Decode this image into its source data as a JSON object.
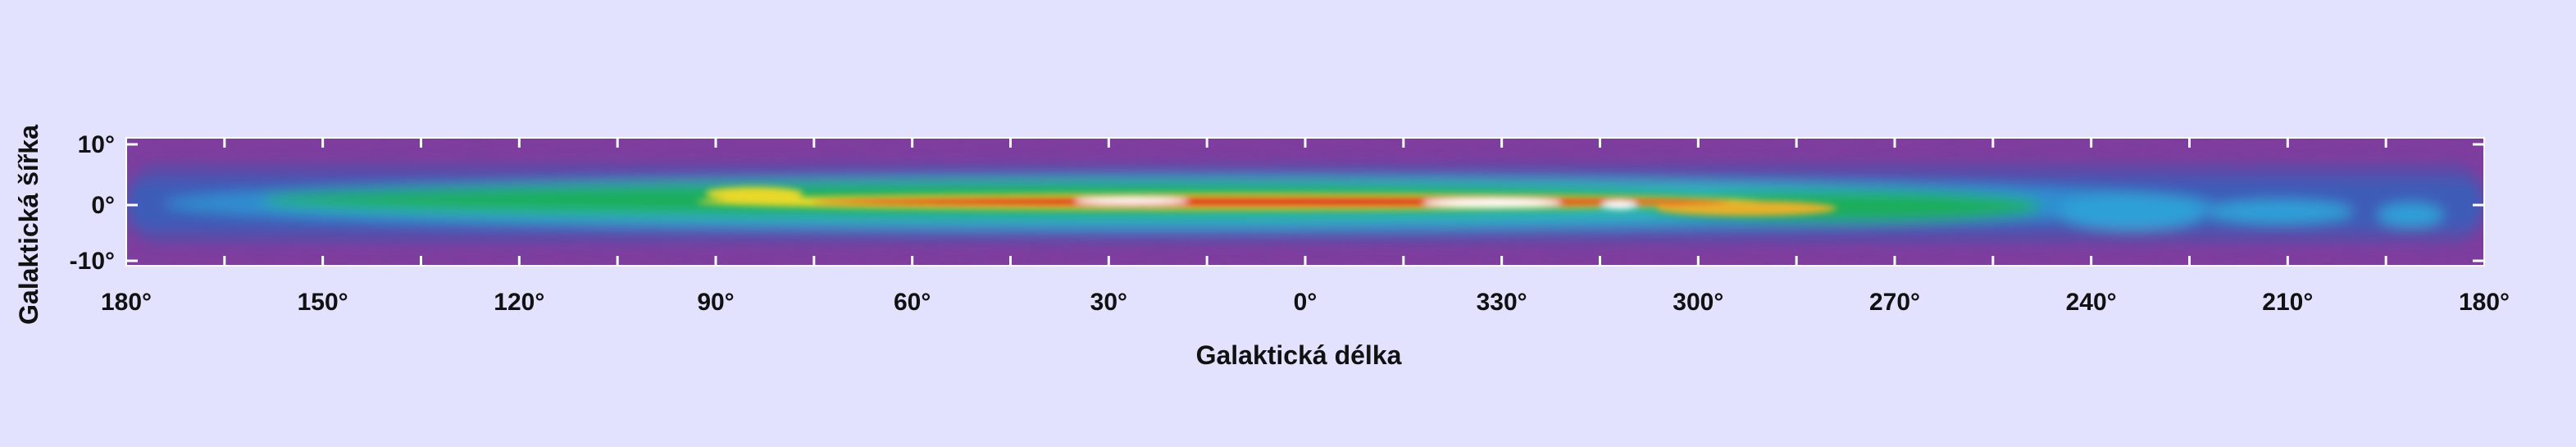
{
  "map": {
    "x_axis_label": "Galaktická délka",
    "y_axis_label": "Galaktická šířka",
    "x_tick_labels": [
      "180°",
      "150°",
      "120°",
      "90°",
      "60°",
      "30°",
      "0°",
      "330°",
      "300°",
      "270°",
      "240°",
      "210°",
      "180°"
    ],
    "y_tick_labels": [
      "10°",
      "0°",
      "-10°"
    ]
  }
}
